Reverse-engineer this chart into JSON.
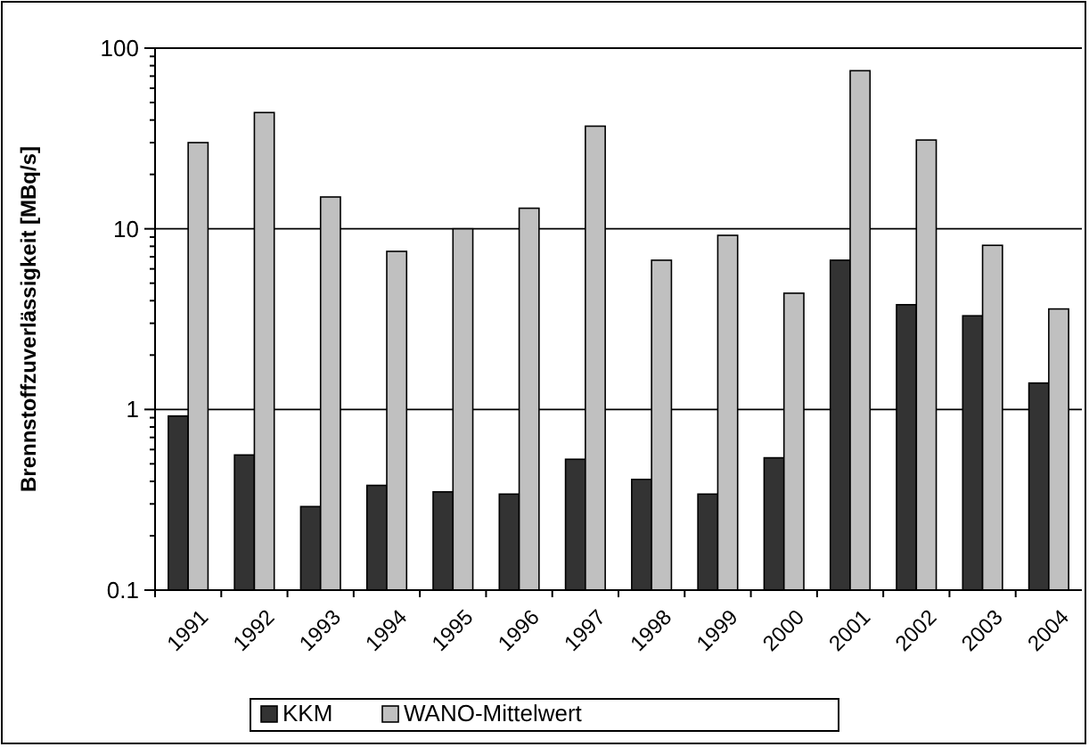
{
  "chart_data": {
    "type": "bar",
    "ylabel": "Brennstoffzuverlässigkeit [MBq/s]",
    "categories": [
      "1991",
      "1992",
      "1993",
      "1994",
      "1995",
      "1996",
      "1997",
      "1998",
      "1999",
      "2000",
      "2001",
      "2002",
      "2003",
      "2004"
    ],
    "series": [
      {
        "name": "KKM",
        "color": "#333333",
        "values": [
          0.92,
          0.56,
          0.29,
          0.38,
          0.35,
          0.34,
          0.53,
          0.41,
          0.34,
          0.54,
          6.7,
          3.8,
          3.3,
          1.4
        ]
      },
      {
        "name": "WANO-Mittelwert",
        "color": "#c0c0c0",
        "values": [
          30,
          44,
          15,
          7.5,
          10,
          13,
          37,
          6.7,
          9.2,
          4.4,
          75,
          31,
          8.1,
          3.6
        ]
      }
    ],
    "log": true,
    "ylim": [
      0.1,
      100
    ],
    "yticks": [
      {
        "value": 0.1,
        "label": "0.1"
      },
      {
        "value": 0.2,
        "label": null
      },
      {
        "value": 0.3,
        "label": null
      },
      {
        "value": 0.4,
        "label": null
      },
      {
        "value": 0.5,
        "label": null
      },
      {
        "value": 0.6,
        "label": null
      },
      {
        "value": 0.7,
        "label": null
      },
      {
        "value": 0.8,
        "label": null
      },
      {
        "value": 0.9,
        "label": null
      },
      1,
      {
        "value": 2,
        "label": null
      },
      {
        "value": 3,
        "label": null
      },
      {
        "value": 4,
        "label": null
      },
      {
        "value": 5,
        "label": null
      },
      {
        "value": 6,
        "label": null
      },
      {
        "value": 7,
        "label": null
      },
      {
        "value": 8,
        "label": null
      },
      {
        "value": 9,
        "label": null
      },
      10,
      {
        "value": 20,
        "label": null
      },
      {
        "value": 30,
        "label": null
      },
      {
        "value": 40,
        "label": null
      },
      {
        "value": 50,
        "label": null
      },
      {
        "value": 60,
        "label": null
      },
      {
        "value": 70,
        "label": null
      },
      {
        "value": 80,
        "label": null
      },
      {
        "value": 90,
        "label": null
      },
      100
    ],
    "grid": "y",
    "legend": "bottom"
  }
}
